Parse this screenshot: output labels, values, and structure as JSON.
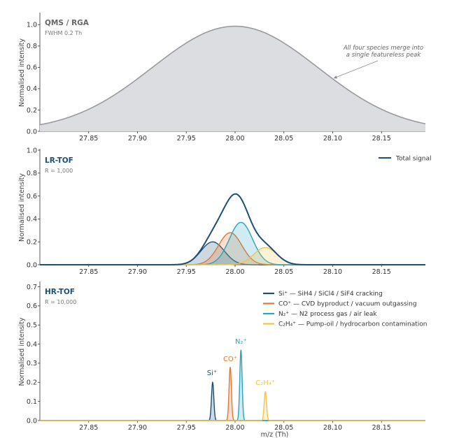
{
  "chart_data": [
    {
      "type": "area",
      "title": "QMS / RGA",
      "subtitle": "FWHM 0.2 Th",
      "ylabel": "Normalised intensity",
      "xlim": [
        27.8,
        28.195
      ],
      "ylim": [
        0,
        1.1
      ],
      "xticks": [
        "27.85",
        "27.90",
        "27.95",
        "28.00",
        "28.05",
        "28.10",
        "28.15"
      ],
      "yticks": [
        "0.0",
        "0.2",
        "0.4",
        "0.6",
        "0.8",
        "1.0"
      ],
      "annotation_line1": "All four species merge into",
      "annotation_line2": "a single featureless peak",
      "series": [
        {
          "center": 28.0,
          "fwhm": 0.2,
          "amplitude": 0.985
        }
      ],
      "colors": {
        "fill": "#dcdde0",
        "line": "#9a9a9e"
      }
    },
    {
      "type": "area",
      "title": "LR-TOF",
      "subtitle": "R = 1,000",
      "ylabel": "Normalised intensity",
      "xlim": [
        27.8,
        28.195
      ],
      "ylim": [
        0,
        1.0
      ],
      "xticks": [
        "27.85",
        "27.90",
        "27.95",
        "28.00",
        "28.05",
        "28.10",
        "28.15"
      ],
      "yticks": [
        "0.0",
        "0.2",
        "0.4",
        "0.6",
        "0.8",
        "1.0"
      ],
      "legend": "Total signal",
      "fwhm": 0.028,
      "series": [
        {
          "center": 27.977,
          "amplitude": 0.2,
          "color": "#1c4f78"
        },
        {
          "center": 27.995,
          "amplitude": 0.28,
          "color": "#e8752f"
        },
        {
          "center": 28.006,
          "amplitude": 0.37,
          "color": "#2aa3be"
        },
        {
          "center": 28.031,
          "amplitude": 0.15,
          "color": "#f2c24e"
        }
      ],
      "total_color": "#1c4f78"
    },
    {
      "type": "area",
      "title": "HR-TOF",
      "subtitle": "R = 10,000",
      "ylabel": "Normalised intensity",
      "xlabel": "m/z (Th)",
      "xlim": [
        27.8,
        28.195
      ],
      "ylim": [
        0,
        0.72
      ],
      "xticks": [
        "27.85",
        "27.90",
        "27.95",
        "28.00",
        "28.05",
        "28.10",
        "28.15"
      ],
      "yticks": [
        "0.0",
        "0.1",
        "0.2",
        "0.3",
        "0.4",
        "0.5",
        "0.6",
        "0.7"
      ],
      "fwhm": 0.0028,
      "series": [
        {
          "name": "Si⁺",
          "center": 27.977,
          "amplitude": 0.2,
          "color": "#1c4f78",
          "label": "Si⁺",
          "legend": "Si⁺  —  SiH4 / SiCl4 / SiF4 cracking"
        },
        {
          "name": "CO⁺",
          "center": 27.995,
          "amplitude": 0.28,
          "color": "#e8752f",
          "label": "CO⁺",
          "legend": "CO⁺  —  CVD byproduct / vacuum outgassing"
        },
        {
          "name": "N₂⁺",
          "center": 28.006,
          "amplitude": 0.37,
          "color": "#2aa3be",
          "label": "N₂⁺",
          "legend": "N₂⁺  —  N2 process gas / air leak"
        },
        {
          "name": "C₂H₄⁺",
          "center": 28.031,
          "amplitude": 0.15,
          "color": "#f2c24e",
          "label": "C₂H₄⁺",
          "legend": "C₂H₄⁺  —  Pump-oil / hydrocarbon contamination"
        }
      ]
    }
  ]
}
